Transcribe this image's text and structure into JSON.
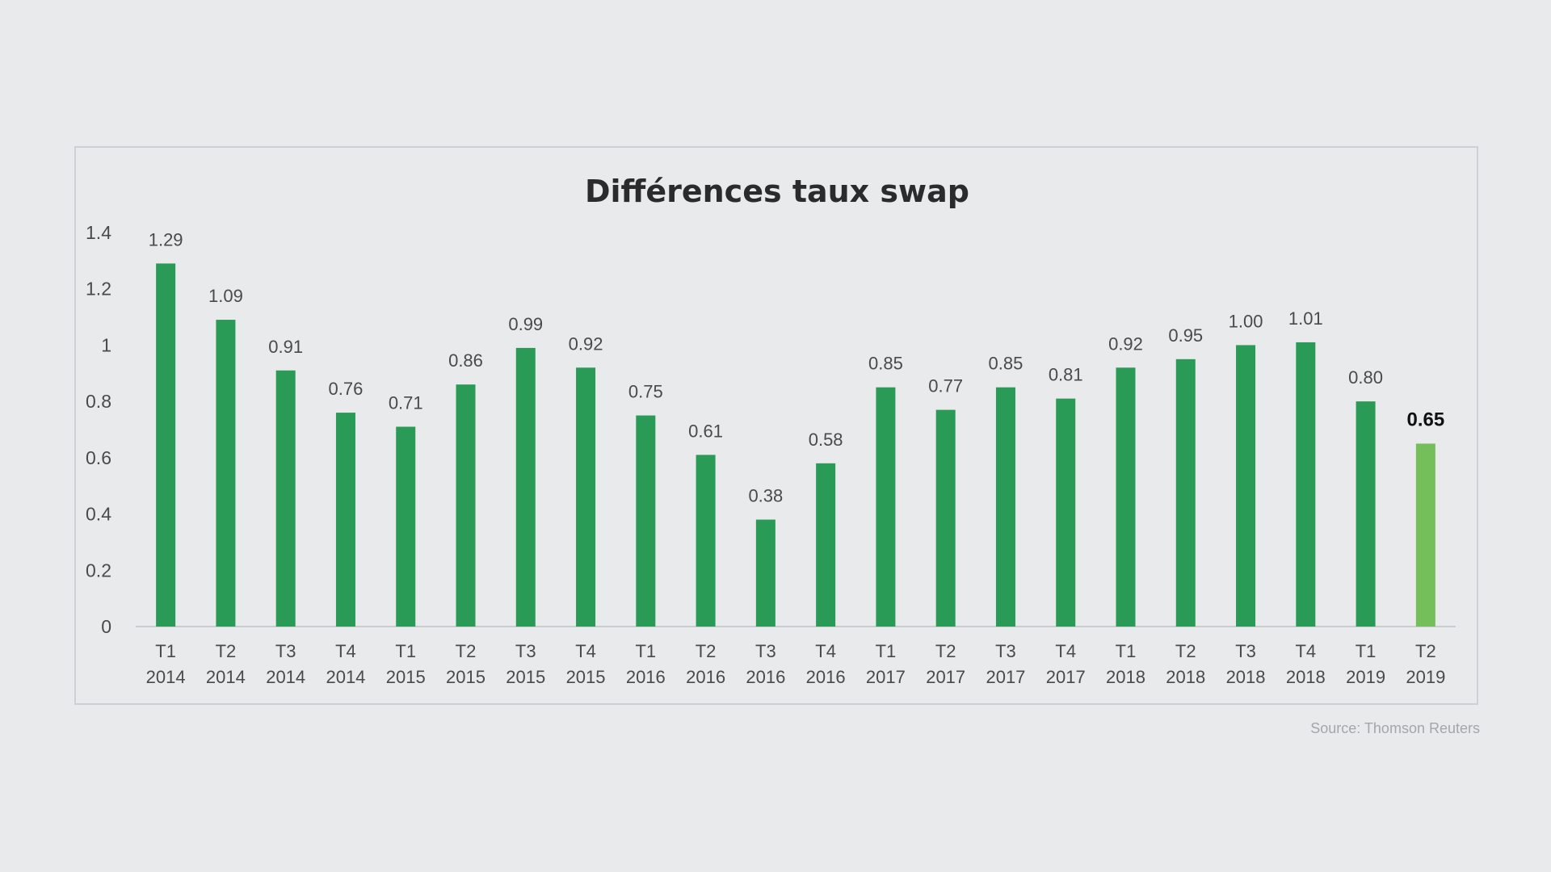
{
  "chart_data": {
    "type": "bar",
    "title": "Différences taux swap",
    "xlabel": "",
    "ylabel": "",
    "ylim": [
      0,
      1.4
    ],
    "yticks": [
      "0",
      "0.2",
      "0.4",
      "0.6",
      "0.8",
      "1",
      "1.2",
      "1.4"
    ],
    "ytick_values": [
      0,
      0.2,
      0.4,
      0.6,
      0.8,
      1,
      1.2,
      1.4
    ],
    "categories": [
      {
        "quarter": "T1",
        "year": "2014"
      },
      {
        "quarter": "T2",
        "year": "2014"
      },
      {
        "quarter": "T3",
        "year": "2014"
      },
      {
        "quarter": "T4",
        "year": "2014"
      },
      {
        "quarter": "T1",
        "year": "2015"
      },
      {
        "quarter": "T2",
        "year": "2015"
      },
      {
        "quarter": "T3",
        "year": "2015"
      },
      {
        "quarter": "T4",
        "year": "2015"
      },
      {
        "quarter": "T1",
        "year": "2016"
      },
      {
        "quarter": "T2",
        "year": "2016"
      },
      {
        "quarter": "T3",
        "year": "2016"
      },
      {
        "quarter": "T4",
        "year": "2016"
      },
      {
        "quarter": "T1",
        "year": "2017"
      },
      {
        "quarter": "T2",
        "year": "2017"
      },
      {
        "quarter": "T3",
        "year": "2017"
      },
      {
        "quarter": "T4",
        "year": "2017"
      },
      {
        "quarter": "T1",
        "year": "2018"
      },
      {
        "quarter": "T2",
        "year": "2018"
      },
      {
        "quarter": "T3",
        "year": "2018"
      },
      {
        "quarter": "T4",
        "year": "2018"
      },
      {
        "quarter": "T1",
        "year": "2019"
      },
      {
        "quarter": "T2",
        "year": "2019"
      }
    ],
    "values": [
      1.29,
      1.09,
      0.91,
      0.76,
      0.71,
      0.86,
      0.99,
      0.92,
      0.75,
      0.61,
      0.38,
      0.58,
      0.85,
      0.77,
      0.85,
      0.81,
      0.92,
      0.95,
      1.0,
      1.01,
      0.8,
      0.65
    ],
    "value_labels": [
      "1.29",
      "1.09",
      "0.91",
      "0.76",
      "0.71",
      "0.86",
      "0.99",
      "0.92",
      "0.75",
      "0.61",
      "0.38",
      "0.58",
      "0.85",
      "0.77",
      "0.85",
      "0.81",
      "0.92",
      "0.95",
      "1.00",
      "1.01",
      "0.80",
      "0.65"
    ],
    "highlight_index": 21,
    "bar_color": "#2a9b57",
    "highlight_color": "#74bf5a",
    "grid": false,
    "legend": "none"
  },
  "source": "Source: Thomson Reuters"
}
